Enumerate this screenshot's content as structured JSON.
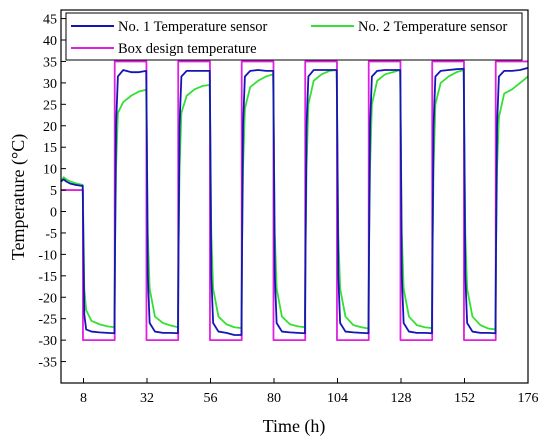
{
  "chart_data": {
    "type": "line",
    "xlabel": "Time (h)",
    "ylabel": "Temperature (°C)",
    "xlim": [
      -0.5,
      176
    ],
    "ylim": [
      -40,
      47
    ],
    "x_ticks": [
      8,
      32,
      56,
      80,
      104,
      128,
      152,
      176
    ],
    "y_ticks": [
      -35,
      -30,
      -25,
      -20,
      -15,
      -10,
      -5,
      0,
      5,
      10,
      15,
      20,
      25,
      30,
      35,
      40,
      45
    ],
    "grid": false,
    "legend_position": "top",
    "series": [
      {
        "name": "No. 1 Temperature sensor",
        "color": "#1515b5",
        "x": [
          -0.5,
          0.5,
          1.5,
          3,
          5,
          7,
          7.7,
          8.0,
          8.3,
          9,
          11,
          14,
          17,
          19.7,
          19.9,
          20.3,
          21,
          23,
          26,
          29,
          31.7,
          31.9,
          32.3,
          33,
          35,
          38,
          41,
          43.7,
          43.9,
          44.3,
          45,
          47,
          50,
          53,
          55.7,
          55.9,
          56.3,
          57,
          59,
          62,
          65,
          67.7,
          67.9,
          68.3,
          69,
          71,
          74,
          77,
          79.7,
          79.9,
          80.3,
          81,
          83,
          86,
          89,
          91.7,
          91.9,
          92.3,
          93,
          95,
          98,
          101,
          103.7,
          103.9,
          104.3,
          105,
          107,
          110,
          113,
          115.7,
          115.9,
          116.3,
          117,
          119,
          122,
          125,
          127.7,
          127.9,
          128.3,
          129,
          131,
          134,
          137,
          139.7,
          139.9,
          140.3,
          141,
          143,
          146,
          149,
          151.7,
          151.9,
          152.3,
          153,
          155,
          158,
          161,
          163.7,
          163.9,
          164.3,
          165,
          167,
          170,
          173,
          176
        ],
        "y": [
          7.0,
          7.5,
          7.0,
          6.5,
          6.2,
          6.0,
          6.0,
          -10,
          -24,
          -27.5,
          -28,
          -28.2,
          -28.3,
          -28.4,
          -10,
          20,
          31.5,
          33,
          32.5,
          32.5,
          32.8,
          20,
          -15,
          -26,
          -28,
          -28.3,
          -28.3,
          -28.4,
          -10,
          20,
          31.5,
          32.8,
          32.8,
          32.8,
          32.8,
          20,
          -15,
          -26,
          -28,
          -28.3,
          -28.8,
          -28.8,
          -10,
          20,
          31.5,
          32.8,
          33,
          32.8,
          32.8,
          20,
          -15,
          -26,
          -28,
          -28.2,
          -28.3,
          -28.4,
          -10,
          20,
          31.5,
          33,
          33,
          33,
          33,
          20,
          -15,
          -26,
          -28,
          -28.2,
          -28.3,
          -28.4,
          -10,
          20,
          31.5,
          32.8,
          33,
          33,
          33,
          20,
          -15,
          -26,
          -28,
          -28.3,
          -28.3,
          -28.4,
          -10,
          20,
          31.5,
          32.8,
          33,
          33.2,
          33.3,
          20,
          -15,
          -26,
          -28,
          -28.3,
          -28.3,
          -28.4,
          -10,
          20,
          31.5,
          32.8,
          32.8,
          33,
          33.5
        ]
      },
      {
        "name": "No. 2 Temperature sensor",
        "color": "#33e033",
        "x": [
          -0.5,
          0.5,
          1.5,
          3,
          5,
          7,
          7.7,
          8.0,
          8.3,
          9,
          11,
          14,
          17,
          19.7,
          19.9,
          20.3,
          21,
          23,
          26,
          29,
          31.7,
          31.9,
          32.3,
          33,
          35,
          38,
          41,
          43.7,
          43.9,
          44.3,
          45,
          47,
          50,
          53,
          55.7,
          55.9,
          56.3,
          57,
          59,
          62,
          65,
          67.7,
          67.9,
          68.3,
          69,
          71,
          74,
          77,
          79.7,
          79.9,
          80.3,
          81,
          83,
          86,
          89,
          91.7,
          91.9,
          92.3,
          93,
          95,
          98,
          101,
          103.7,
          103.9,
          104.3,
          105,
          107,
          110,
          113,
          115.7,
          115.9,
          116.3,
          117,
          119,
          122,
          125,
          127.7,
          127.9,
          128.3,
          129,
          131,
          134,
          137,
          139.7,
          139.9,
          140.3,
          141,
          143,
          146,
          149,
          151.7,
          151.9,
          152.3,
          153,
          155,
          158,
          161,
          163.7,
          163.9,
          164.3,
          165,
          167,
          170,
          173,
          176
        ],
        "y": [
          7.0,
          8.0,
          7.5,
          7.0,
          6.6,
          6.3,
          6.2,
          -5,
          -18,
          -23,
          -25.5,
          -26.3,
          -26.8,
          -27.0,
          -10,
          10,
          23,
          25.5,
          27,
          28,
          28.4,
          18,
          -5,
          -18,
          -24.5,
          -26,
          -26.6,
          -27.0,
          -10,
          10,
          23,
          27,
          28.5,
          29.3,
          29.5,
          18,
          -5,
          -18,
          -24.5,
          -26.3,
          -27.0,
          -27.2,
          -10,
          10,
          24,
          29,
          30.5,
          31.5,
          32,
          18,
          -5,
          -18,
          -24.5,
          -26.3,
          -26.8,
          -27.0,
          -10,
          10,
          25,
          30.5,
          32,
          32.8,
          33,
          18,
          -5,
          -18,
          -24.5,
          -26.5,
          -27.0,
          -27.3,
          -10,
          10,
          25,
          30.5,
          32,
          32.5,
          33,
          18,
          -5,
          -18,
          -24.5,
          -26.5,
          -27.0,
          -27.2,
          -10,
          10,
          25,
          30,
          31.5,
          32.5,
          33,
          18,
          -5,
          -18,
          -24.5,
          -26.5,
          -27.3,
          -27.5,
          -10,
          10,
          22,
          27.5,
          28.5,
          30,
          31.5
        ]
      },
      {
        "name": "Box design temperature",
        "color": "#e020e0",
        "x": [
          -0.5,
          7.8,
          7.8,
          19.8,
          19.8,
          31.8,
          31.8,
          43.8,
          43.8,
          55.8,
          55.8,
          67.8,
          67.8,
          79.8,
          79.8,
          91.8,
          91.8,
          103.8,
          103.8,
          115.8,
          115.8,
          127.8,
          127.8,
          139.8,
          139.8,
          151.8,
          151.8,
          163.8,
          163.8,
          176
        ],
        "y": [
          5,
          5,
          -30,
          -30,
          35,
          35,
          -30,
          -30,
          35,
          35,
          -30,
          -30,
          35,
          35,
          -30,
          -30,
          35,
          35,
          -30,
          -30,
          35,
          35,
          -30,
          -30,
          35,
          35,
          -30,
          -30,
          35,
          35
        ]
      }
    ]
  }
}
